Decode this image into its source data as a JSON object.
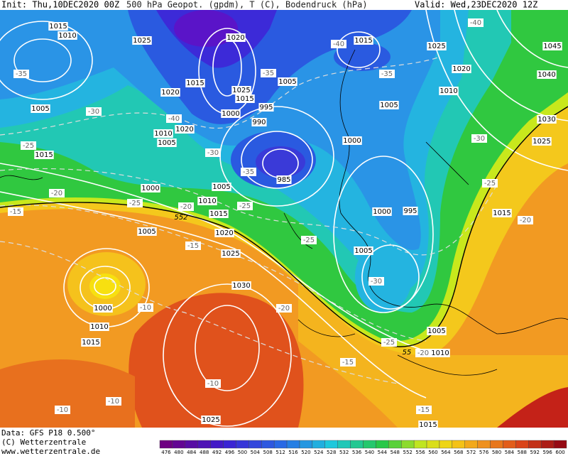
{
  "header": {
    "init": "Init: Thu,10DEC2020 00Z",
    "title": "500 hPa Geopot. (gpdm), T (C), Bodendruck (hPa)",
    "valid": "Valid: Wed,23DEC2020 12Z"
  },
  "footer": {
    "data_source": "Data: GFS P18 0.500°",
    "copyright": "(C) Wetterzentrale",
    "website": "www.wetterzentrale.de"
  },
  "colorbar": {
    "labels": [
      476,
      480,
      484,
      488,
      492,
      496,
      500,
      504,
      508,
      512,
      516,
      520,
      524,
      528,
      532,
      536,
      540,
      544,
      548,
      552,
      556,
      560,
      564,
      568,
      572,
      576,
      580,
      584,
      588,
      592,
      596,
      600
    ]
  },
  "map": {
    "pressure_labels": [
      1015,
      1010,
      1025,
      1020,
      1015,
      1025,
      1045,
      1020,
      1040,
      1005,
      1015,
      1025,
      1015,
      1020,
      1010,
      1005,
      995,
      1000,
      1005,
      990,
      1020,
      1010,
      1005,
      1030,
      1000,
      1025,
      985,
      1015,
      1000,
      1005,
      1010,
      1015,
      1000,
      995,
      1015,
      1005,
      1020,
      1005,
      1025,
      1030,
      1000,
      1010,
      1015,
      1005,
      1010,
      1025,
      1015
    ],
    "temperature_labels": [
      -35,
      -35,
      -35,
      -40,
      -40,
      -30,
      -40,
      -30,
      -25,
      -35,
      -30,
      -20,
      -25,
      -25,
      -15,
      -20,
      -25,
      -20,
      -15,
      -25,
      -30,
      -10,
      -20,
      -25,
      -20,
      -15,
      -10,
      -10,
      -10,
      -15
    ],
    "geopotential_labels": [
      552,
      55
    ]
  }
}
